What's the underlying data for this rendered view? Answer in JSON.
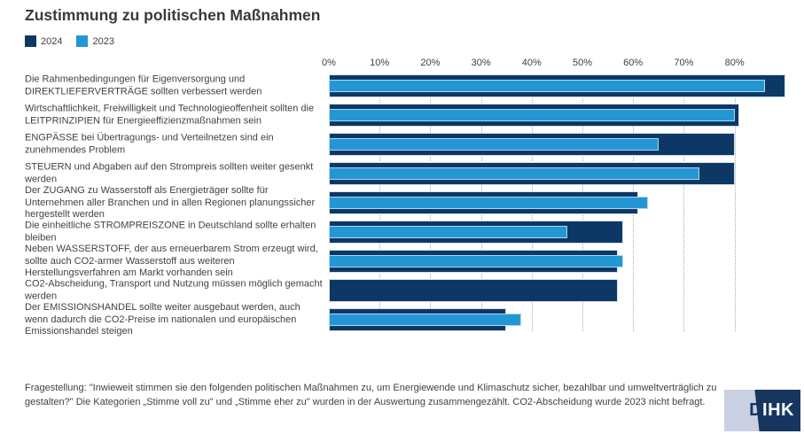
{
  "title": "Zustimmung zu politischen Maßnahmen",
  "legend": [
    {
      "label": "2024",
      "color": "#0d3866"
    },
    {
      "label": "2023",
      "color": "#2397d3"
    }
  ],
  "chart_data": {
    "type": "bar",
    "orientation": "horizontal",
    "title": "Zustimmung zu politischen Maßnahmen",
    "xlabel": "",
    "ylabel": "",
    "axis": {
      "ticks": [
        "0%",
        "10%",
        "20%",
        "30%",
        "40%",
        "50%",
        "60%",
        "70%",
        "80%"
      ],
      "tick_values": [
        0,
        10,
        20,
        30,
        40,
        50,
        60,
        70,
        80
      ],
      "xlim": [
        0,
        90
      ],
      "grid": "vertical-dotted",
      "axis_position": "top"
    },
    "legend_position": "top-left",
    "categories": [
      "Die Rahmenbedingungen für Eigenversorgung und DIREKTLIEFERVERTRÄGE sollten verbessert werden",
      "Wirtschaftlichkeit, Freiwilligkeit und Technologieoffenheit sollten die LEITPRINZIPIEN für Energieeffizienzmaßnahmen sein",
      "ENGPÄSSE bei Übertragungs- und Verteilnetzen sind ein zunehmendes Problem",
      "STEUERN und Abgaben auf den Strompreis sollten weiter gesenkt werden",
      "Der ZUGANG zu Wasserstoff als Energieträger sollte für Unternehmen aller Branchen und in allen Regionen planungssicher hergestellt werden",
      "Die einheitliche STROMPREISZONE in Deutschland sollte erhalten bleiben",
      "Neben WASSERSTOFF, der aus erneuerbarem Strom erzeugt wird, sollte auch CO2-armer Wasserstoff aus weiteren Herstellungsverfahren am Markt vorhanden sein",
      "CO2-Abscheidung, Transport und Nutzung müssen möglich gemacht werden",
      "Der EMISSIONSHANDEL sollte weiter ausgebaut werden, auch wenn dadurch die CO2-Preise im nationalen und europäischen Emissionshandel steigen"
    ],
    "series": [
      {
        "name": "2024",
        "color": "#0d3866",
        "values": [
          90,
          81,
          80,
          80,
          61,
          58,
          57,
          57,
          35
        ]
      },
      {
        "name": "2023",
        "color": "#2397d3",
        "values": [
          86,
          80,
          65,
          73,
          63,
          47,
          58,
          null,
          38
        ]
      }
    ]
  },
  "footer": {
    "note": "Fragestellung: \"Inwieweit stimmen sie den folgenden politischen Maßnahmen zu, um Energiewende und Klimaschutz sicher, bezahlbar und umweltverträglich zu gestalten?\" Die Kategorien „Stimme voll zu\" und „Stimme eher zu\" wurden in der Auswertung zusammengezählt. CO2-Abscheidung wurde 2023 nicht befragt."
  },
  "logo": {
    "d": "D",
    "ihk": "IHK"
  }
}
